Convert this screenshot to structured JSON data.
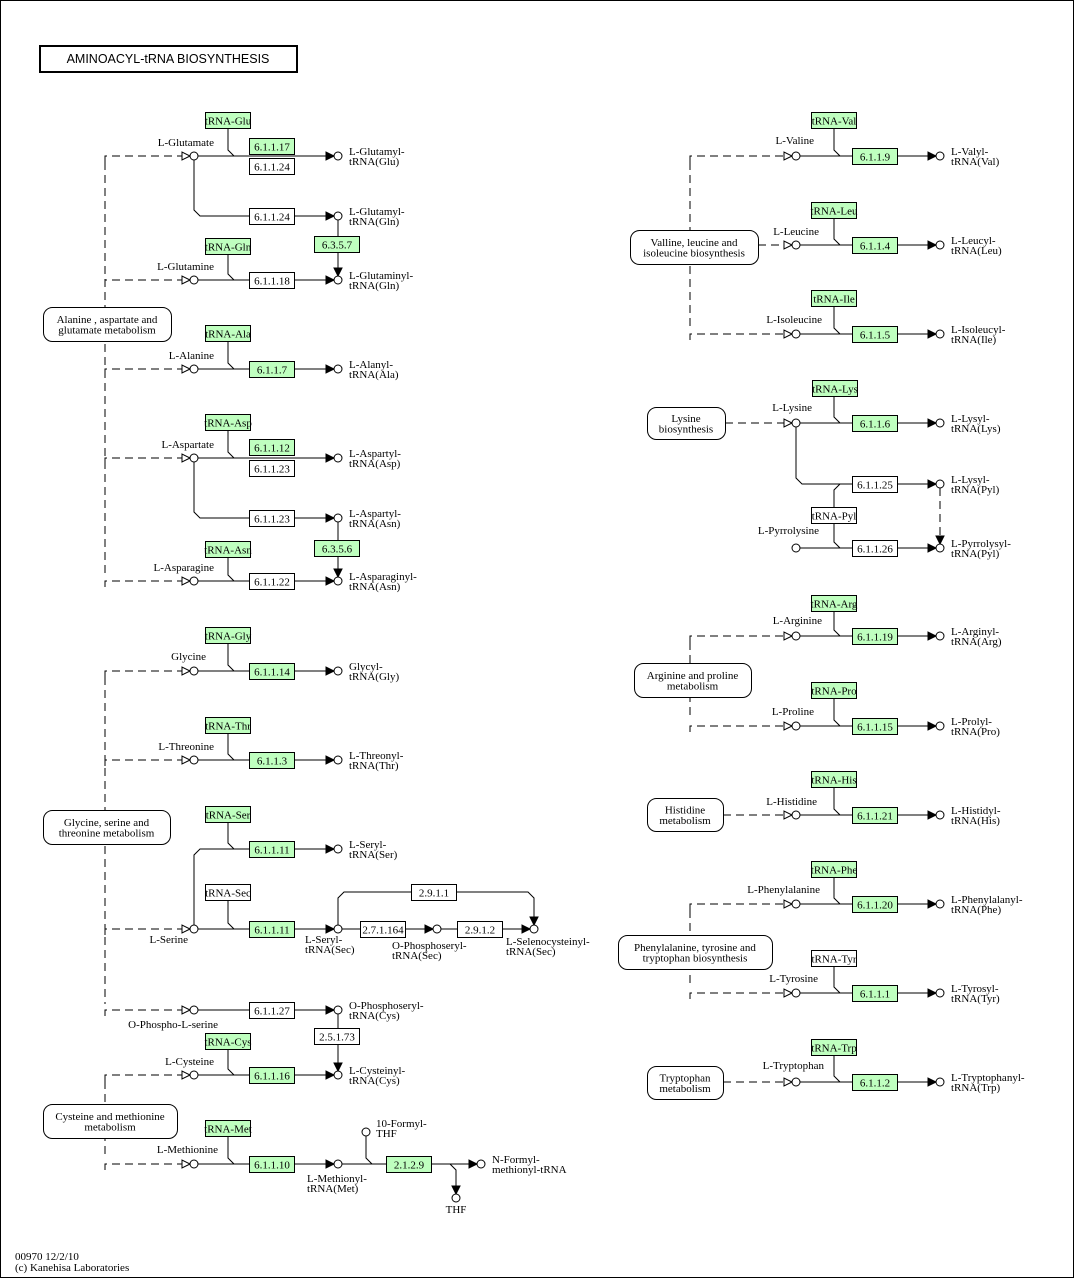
{
  "title": "AMINOACYL-tRNA BIOSYNTHESIS",
  "colors": {
    "highlight": "#bfffbf",
    "line": "#000000",
    "background": "#ffffff"
  },
  "enzymes": [
    {
      "label": "tRNA-Glu",
      "green": true
    },
    {
      "label": "6.1.1.17",
      "green": true
    },
    {
      "label": "6.1.1.24",
      "green": false
    },
    {
      "label": "6.1.1.24",
      "green": false
    },
    {
      "label": "6.3.5.7",
      "green": true
    },
    {
      "label": "tRNA-Gln",
      "green": true
    },
    {
      "label": "6.1.1.18",
      "green": false
    },
    {
      "label": "tRNA-Ala",
      "green": true
    },
    {
      "label": "6.1.1.7",
      "green": true
    },
    {
      "label": "tRNA-Asp",
      "green": true
    },
    {
      "label": "6.1.1.12",
      "green": true
    },
    {
      "label": "6.1.1.23",
      "green": false
    },
    {
      "label": "6.1.1.23",
      "green": false
    },
    {
      "label": "6.3.5.6",
      "green": true
    },
    {
      "label": "tRNA-Asn",
      "green": true
    },
    {
      "label": "6.1.1.22",
      "green": false
    },
    {
      "label": "tRNA-Gly",
      "green": true
    },
    {
      "label": "6.1.1.14",
      "green": true
    },
    {
      "label": "tRNA-Thr",
      "green": true
    },
    {
      "label": "6.1.1.3",
      "green": true
    },
    {
      "label": "tRNA-Ser",
      "green": true
    },
    {
      "label": "6.1.1.11",
      "green": true
    },
    {
      "label": "tRNA-Sec",
      "green": false
    },
    {
      "label": "6.1.1.11",
      "green": true
    },
    {
      "label": "2.9.1.1",
      "green": false
    },
    {
      "label": "2.7.1.164",
      "green": false
    },
    {
      "label": "2.9.1.2",
      "green": false
    },
    {
      "label": "6.1.1.27",
      "green": false
    },
    {
      "label": "2.5.1.73",
      "green": false
    },
    {
      "label": "tRNA-Cys",
      "green": true
    },
    {
      "label": "6.1.1.16",
      "green": true
    },
    {
      "label": "tRNA-Met",
      "green": true
    },
    {
      "label": "6.1.1.10",
      "green": true
    },
    {
      "label": "2.1.2.9",
      "green": true
    },
    {
      "label": "tRNA-Val",
      "green": true
    },
    {
      "label": "6.1.1.9",
      "green": true
    },
    {
      "label": "tRNA-Leu",
      "green": true
    },
    {
      "label": "6.1.1.4",
      "green": true
    },
    {
      "label": "tRNA-Ile",
      "green": true
    },
    {
      "label": "6.1.1.5",
      "green": true
    },
    {
      "label": "tRNA-Lys",
      "green": true
    },
    {
      "label": "6.1.1.6",
      "green": true
    },
    {
      "label": "6.1.1.25",
      "green": false
    },
    {
      "label": "tRNA-Pyl",
      "green": false
    },
    {
      "label": "6.1.1.26",
      "green": false
    },
    {
      "label": "tRNA-Arg",
      "green": true
    },
    {
      "label": "6.1.1.19",
      "green": true
    },
    {
      "label": "tRNA-Pro",
      "green": true
    },
    {
      "label": "6.1.1.15",
      "green": true
    },
    {
      "label": "tRNA-His",
      "green": true
    },
    {
      "label": "6.1.1.21",
      "green": true
    },
    {
      "label": "tRNA-Phe",
      "green": true
    },
    {
      "label": "6.1.1.20",
      "green": true
    },
    {
      "label": "tRNA-Tyr",
      "green": false
    },
    {
      "label": "6.1.1.1",
      "green": true
    },
    {
      "label": "tRNA-Trp",
      "green": true
    },
    {
      "label": "6.1.1.2",
      "green": true
    }
  ],
  "compounds": [
    {
      "lines": [
        "L-Glutamate"
      ]
    },
    {
      "lines": [
        "L-Glutamine"
      ]
    },
    {
      "lines": [
        "L-Alanine"
      ]
    },
    {
      "lines": [
        "L-Aspartate"
      ]
    },
    {
      "lines": [
        "L-Asparagine"
      ]
    },
    {
      "lines": [
        "Glycine"
      ]
    },
    {
      "lines": [
        "L-Threonine"
      ]
    },
    {
      "lines": [
        "L-Serine"
      ]
    },
    {
      "lines": [
        "O-Phospho-L-serine"
      ]
    },
    {
      "lines": [
        "L-Cysteine"
      ]
    },
    {
      "lines": [
        "L-Methionine"
      ]
    },
    {
      "lines": [
        "L-Glutamyl-",
        "tRNA(Glu)"
      ]
    },
    {
      "lines": [
        "L-Glutamyl-",
        "tRNA(Gln)"
      ]
    },
    {
      "lines": [
        "L-Glutaminyl-",
        "tRNA(Gln)"
      ]
    },
    {
      "lines": [
        "L-Alanyl-",
        "tRNA(Ala)"
      ]
    },
    {
      "lines": [
        "L-Aspartyl-",
        "tRNA(Asp)"
      ]
    },
    {
      "lines": [
        "L-Aspartyl-",
        "tRNA(Asn)"
      ]
    },
    {
      "lines": [
        "L-Asparaginyl-",
        "tRNA(Asn)"
      ]
    },
    {
      "lines": [
        "Glycyl-",
        "tRNA(Gly)"
      ]
    },
    {
      "lines": [
        "L-Threonyl-",
        "tRNA(Thr)"
      ]
    },
    {
      "lines": [
        "L-Seryl-",
        "tRNA(Ser)"
      ]
    },
    {
      "lines": [
        "L-Seryl-",
        "tRNA(Sec)"
      ]
    },
    {
      "lines": [
        "O-Phosphoseryl-",
        "tRNA(Cys)"
      ]
    },
    {
      "lines": [
        "L-Cysteinyl-",
        "tRNA(Cys)"
      ]
    },
    {
      "lines": [
        "L-Methionyl-",
        "tRNA(Met)"
      ]
    },
    {
      "lines": [
        "O-Phosphoseryl-",
        "tRNA(Sec)"
      ]
    },
    {
      "lines": [
        "L-Selenocysteinyl-",
        "tRNA(Sec)"
      ]
    },
    {
      "lines": [
        "10-Formyl-",
        "THF"
      ]
    },
    {
      "lines": [
        "THF"
      ]
    },
    {
      "lines": [
        "N-Formyl-",
        "methionyl-tRNA"
      ]
    },
    {
      "lines": [
        "L-Valine"
      ]
    },
    {
      "lines": [
        "L-Leucine"
      ]
    },
    {
      "lines": [
        "L-Isoleucine"
      ]
    },
    {
      "lines": [
        "L-Lysine"
      ]
    },
    {
      "lines": [
        "L-Pyrrolysine"
      ]
    },
    {
      "lines": [
        "L-Arginine"
      ]
    },
    {
      "lines": [
        "L-Proline"
      ]
    },
    {
      "lines": [
        "L-Histidine"
      ]
    },
    {
      "lines": [
        "L-Phenylalanine"
      ]
    },
    {
      "lines": [
        "L-Tyrosine"
      ]
    },
    {
      "lines": [
        "L-Tryptophan"
      ]
    },
    {
      "lines": [
        "L-Valyl-",
        "tRNA(Val)"
      ]
    },
    {
      "lines": [
        "L-Leucyl-",
        "tRNA(Leu)"
      ]
    },
    {
      "lines": [
        "L-Isoleucyl-",
        "tRNA(Ile)"
      ]
    },
    {
      "lines": [
        "L-Lysyl-",
        "tRNA(Lys)"
      ]
    },
    {
      "lines": [
        "L-Lysyl-",
        "tRNA(Pyl)"
      ]
    },
    {
      "lines": [
        "L-Pyrrolysyl-",
        "tRNA(Pyl)"
      ]
    },
    {
      "lines": [
        "L-Arginyl-",
        "tRNA(Arg)"
      ]
    },
    {
      "lines": [
        "L-Prolyl-",
        "tRNA(Pro)"
      ]
    },
    {
      "lines": [
        "L-Histidyl-",
        "tRNA(His)"
      ]
    },
    {
      "lines": [
        "L-Phenylalanyl-",
        "tRNA(Phe)"
      ]
    },
    {
      "lines": [
        "L-Tyrosyl-",
        "tRNA(Tyr)"
      ]
    },
    {
      "lines": [
        "L-Tryptophanyl-",
        "tRNA(Trp)"
      ]
    }
  ],
  "maps": [
    {
      "lines": [
        "Alanine , aspartate and",
        "glutamate metabolism"
      ]
    },
    {
      "lines": [
        "Glycine, serine and",
        "threonine metabolism"
      ]
    },
    {
      "lines": [
        "Cysteine and methionine",
        "metabolism"
      ]
    },
    {
      "lines": [
        "Valline, leucine and",
        "isoleucine biosynthesis"
      ]
    },
    {
      "lines": [
        "Lysine",
        "biosynthesis"
      ]
    },
    {
      "lines": [
        "Arginine and proline",
        "metabolism"
      ]
    },
    {
      "lines": [
        "Histidine",
        "metabolism"
      ]
    },
    {
      "lines": [
        "Phenylalanine, tyrosine and",
        "tryptophan biosynthesis"
      ]
    },
    {
      "lines": [
        "Tryptophan",
        "metabolism"
      ]
    }
  ],
  "footer": {
    "code": "00970 12/2/10",
    "copyright": "(c) Kanehisa Laboratories"
  }
}
